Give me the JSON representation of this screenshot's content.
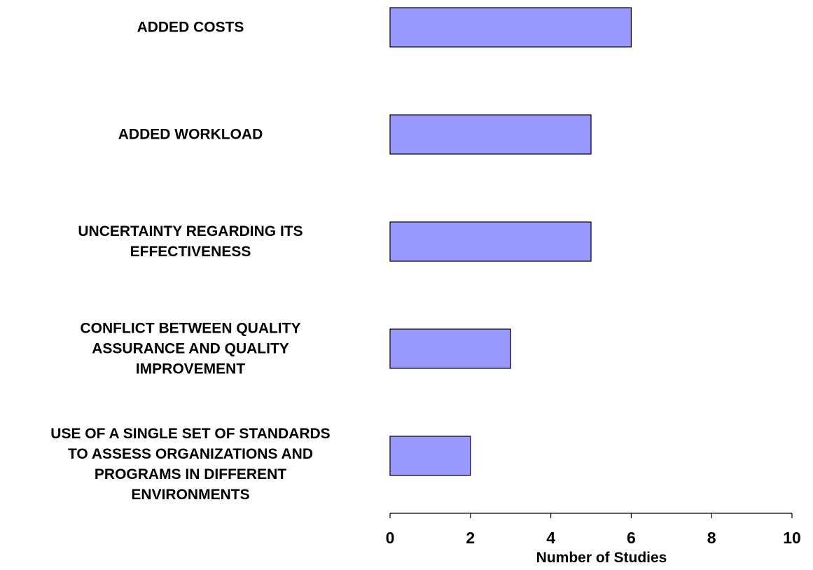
{
  "chart_data": {
    "type": "bar",
    "orientation": "horizontal",
    "categories": [
      "ADDED COSTS",
      "ADDED WORKLOAD",
      "UNCERTAINTY REGARDING ITS EFFECTIVENESS",
      "CONFLICT BETWEEN QUALITY ASSURANCE AND QUALITY IMPROVEMENT",
      "USE OF A SINGLE SET OF STANDARDS TO ASSESS ORGANIZATIONS AND PROGRAMS IN DIFFERENT ENVIRONMENTS"
    ],
    "category_label_lines": [
      [
        "ADDED COSTS"
      ],
      [
        "ADDED WORKLOAD"
      ],
      [
        "UNCERTAINTY REGARDING ITS",
        "EFFECTIVENESS"
      ],
      [
        "CONFLICT BETWEEN QUALITY",
        "ASSURANCE AND QUALITY",
        "IMPROVEMENT"
      ],
      [
        "USE OF A SINGLE SET OF STANDARDS",
        "TO ASSESS ORGANIZATIONS AND",
        "PROGRAMS IN DIFFERENT",
        "ENVIRONMENTS"
      ]
    ],
    "values": [
      6,
      5,
      5,
      3,
      2
    ],
    "xlabel": "Number of Studies",
    "ylabel": "",
    "title": "",
    "xlim": [
      0,
      10
    ],
    "xticks": [
      0,
      2,
      4,
      6,
      8,
      10
    ],
    "xtick_labels": [
      "0",
      "2",
      "4",
      "6",
      "8",
      "10"
    ],
    "grid": false,
    "legend": "none",
    "bar_color": "#9999ff",
    "bar_edge_color": "#000000"
  }
}
